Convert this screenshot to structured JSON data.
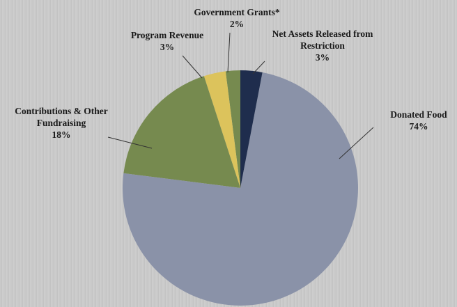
{
  "chart_data": {
    "type": "pie",
    "categories": [
      "Net Assets Released from Restriction",
      "Donated Food",
      "Contributions & Other Fundraising",
      "Program Revenue",
      "Government Grants*"
    ],
    "values": [
      3,
      74,
      18,
      3,
      2
    ],
    "value_labels": [
      "3%",
      "74%",
      "18%",
      "3%",
      "2%"
    ],
    "colors": [
      "#1f2d4d",
      "#8a92a8",
      "#768a4f",
      "#dcc35c",
      "#768a4f"
    ]
  }
}
